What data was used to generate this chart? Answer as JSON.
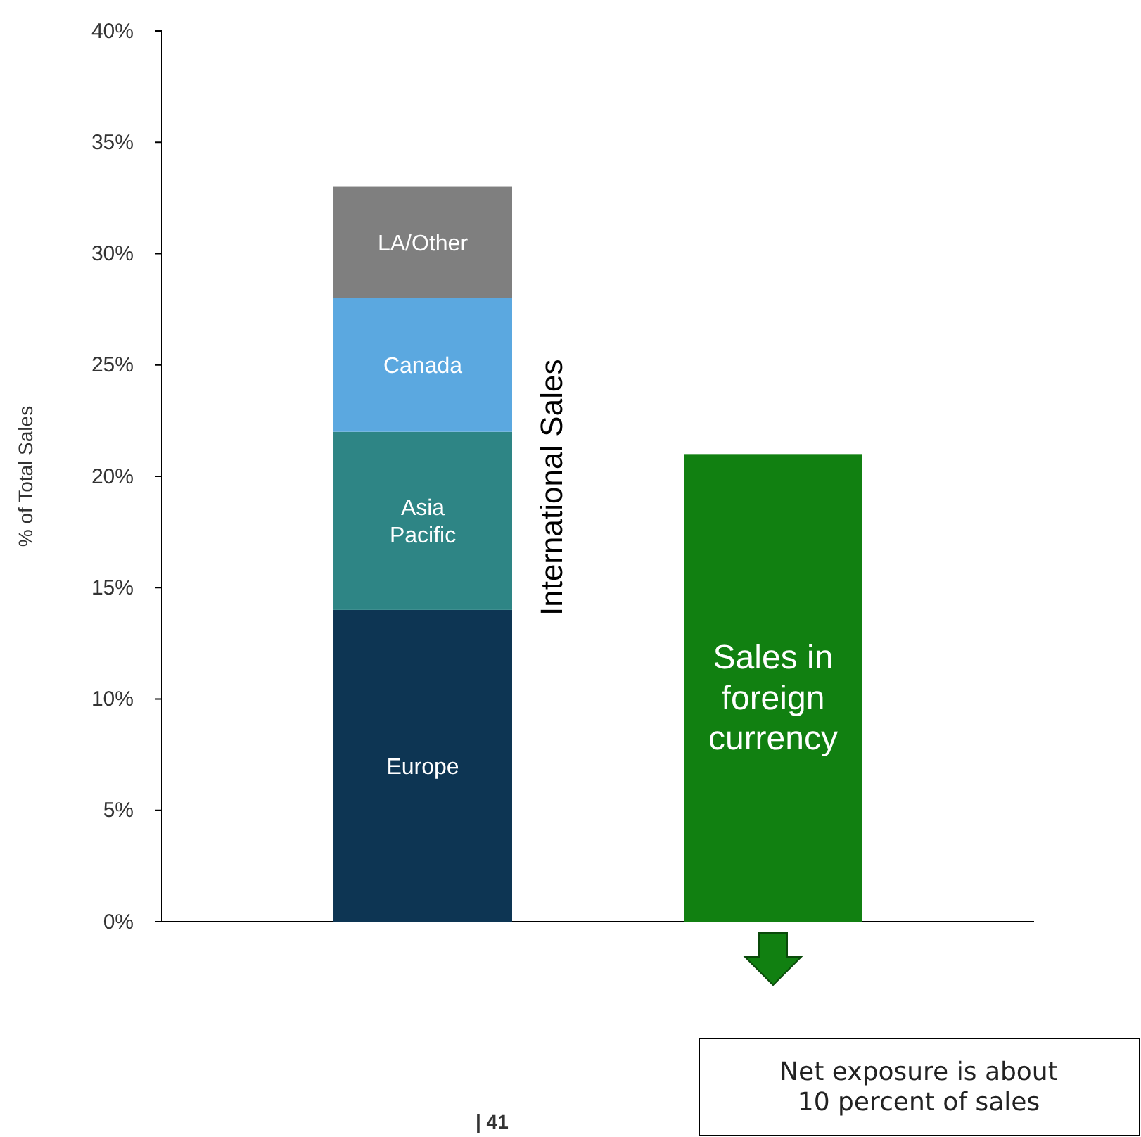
{
  "chart_data": {
    "type": "bar",
    "stacked": true,
    "ylabel": "% of Total Sales",
    "categories": [
      null,
      null
    ],
    "series": [
      {
        "name": "Europe",
        "color": "#0d3553",
        "values": [
          14,
          null
        ]
      },
      {
        "name": "Asia Pacific",
        "color": "#2e8585",
        "values": [
          8,
          null
        ]
      },
      {
        "name": "Canada",
        "color": "#5ba8e0",
        "values": [
          6,
          null
        ]
      },
      {
        "name": "LA/Other",
        "color": "#7f7f7f",
        "values": [
          5,
          null
        ]
      },
      {
        "name": "Sales in foreign currency",
        "color": "#118011",
        "values": [
          null,
          21
        ]
      }
    ],
    "ylim": [
      0,
      40
    ],
    "yticks": [
      {
        "value": 0,
        "label": "0%"
      },
      {
        "value": 5,
        "label": "5%"
      },
      {
        "value": 10,
        "label": "10%"
      },
      {
        "value": 15,
        "label": "15%"
      },
      {
        "value": 20,
        "label": "20%"
      },
      {
        "value": 25,
        "label": "25%"
      },
      {
        "value": 30,
        "label": "30%"
      },
      {
        "value": 35,
        "label": "35%"
      },
      {
        "value": 40,
        "label": "40%"
      }
    ],
    "grid": false,
    "annotations": [
      "International Sales",
      "Net exposure is about 10 percent of sales",
      "| 41"
    ]
  }
}
